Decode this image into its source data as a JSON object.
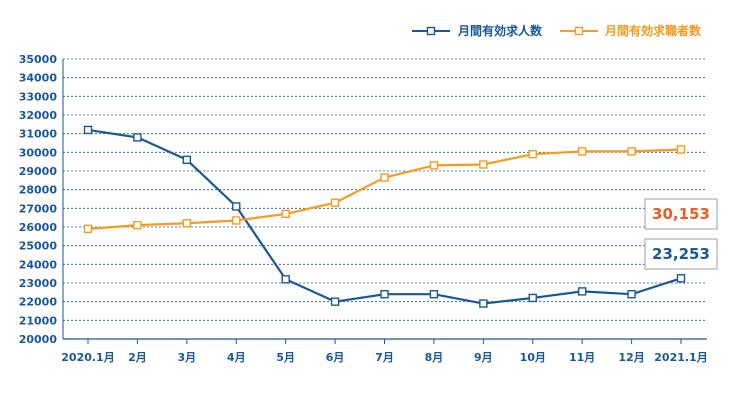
{
  "chart_data": {
    "type": "line",
    "categories": [
      "2020.1月",
      "2月",
      "3月",
      "4月",
      "5月",
      "6月",
      "7月",
      "8月",
      "9月",
      "10月",
      "11月",
      "12月",
      "2021.1月"
    ],
    "series": [
      {
        "name": "月間有効求人数",
        "color": "#1a5799",
        "values": [
          31200,
          30800,
          29600,
          27100,
          23200,
          22000,
          22400,
          22400,
          21900,
          22200,
          22550,
          22400,
          23253
        ]
      },
      {
        "name": "月間有効求職者数",
        "color": "#f39c1f",
        "values": [
          25900,
          26100,
          26200,
          26350,
          26700,
          27300,
          28650,
          29300,
          29350,
          29900,
          30050,
          30050,
          30153
        ]
      }
    ],
    "ylim": [
      20000,
      35000
    ],
    "y_ticks": [
      "20000",
      "21000",
      "22000",
      "23000",
      "24000",
      "25000",
      "26000",
      "27000",
      "28000",
      "29000",
      "30000",
      "31000",
      "32000",
      "33000",
      "34000",
      "35000"
    ],
    "grid": true,
    "legend_position": "top-right",
    "annotations": [
      {
        "text": "30,153",
        "series": 1,
        "color": "#f15a24"
      },
      {
        "text": "23,253",
        "series": 0,
        "color": "#1a5799"
      }
    ]
  }
}
